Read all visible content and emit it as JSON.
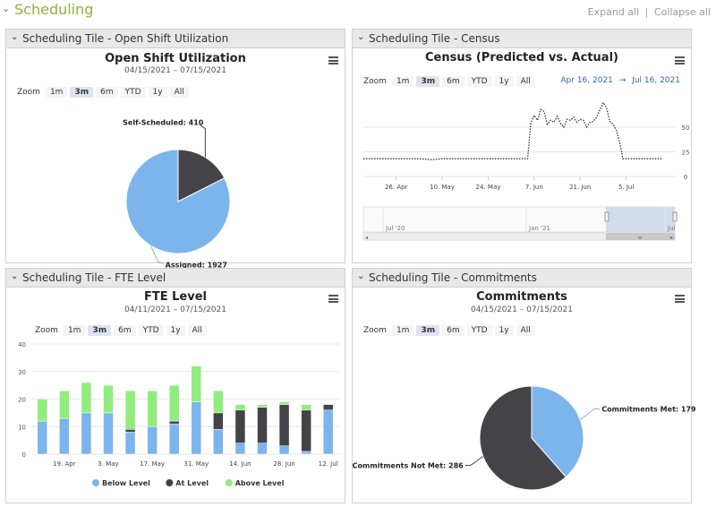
{
  "header": {
    "title": "Scheduling",
    "expand_label": "Expand all",
    "separator": "|",
    "collapse_label": "Collapse all"
  },
  "zoom_label": "Zoom",
  "zoom_options": [
    "1m",
    "3m",
    "6m",
    "YTD",
    "1y",
    "All"
  ],
  "zoom_active": "3m",
  "tiles": {
    "open_shift": {
      "header": "Scheduling Tile - Open Shift Utilization",
      "title": "Open Shift Utilization",
      "subtitle": "04/15/2021 – 07/15/2021"
    },
    "census": {
      "header": "Scheduling Tile - Census",
      "title": "Census (Predicted vs. Actual)",
      "date_from": "Apr 16, 2021",
      "date_arrow": "→",
      "date_to": "Jul 16, 2021",
      "navigator_labels": [
        "Jul '20",
        "Jan '21",
        "Jul"
      ]
    },
    "fte": {
      "header": "Scheduling Tile - FTE Level",
      "title": "FTE Level",
      "subtitle": "04/11/2021 – 07/15/2021"
    },
    "commitments": {
      "header": "Scheduling Tile - Commitments",
      "title": "Commitments",
      "subtitle": "04/15/2021 – 07/15/2021"
    }
  },
  "colors": {
    "blue": "#7cb5ec",
    "dark": "#434348",
    "green": "#90ed7d",
    "accent": "#8db33c",
    "date_link": "#3366aa"
  },
  "chart_data": [
    {
      "id": "open_shift",
      "type": "pie",
      "slices": [
        {
          "label": "Self-Scheduled",
          "value": 410,
          "color": "#434348"
        },
        {
          "label": "Assigned",
          "value": 1927,
          "color": "#7cb5ec"
        }
      ]
    },
    {
      "id": "census",
      "type": "line",
      "x": [
        "2021-04-16",
        "2021-04-20",
        "2021-04-26",
        "2021-05-03",
        "2021-05-07",
        "2021-05-10",
        "2021-05-17",
        "2021-05-24",
        "2021-05-31",
        "2021-06-05",
        "2021-06-06",
        "2021-06-07",
        "2021-06-08",
        "2021-06-09",
        "2021-06-10",
        "2021-06-11",
        "2021-06-12",
        "2021-06-13",
        "2021-06-14",
        "2021-06-15",
        "2021-06-16",
        "2021-06-17",
        "2021-06-18",
        "2021-06-19",
        "2021-06-20",
        "2021-06-21",
        "2021-06-22",
        "2021-06-23",
        "2021-06-24",
        "2021-06-25",
        "2021-06-26",
        "2021-06-27",
        "2021-06-28",
        "2021-06-29",
        "2021-06-30",
        "2021-07-01",
        "2021-07-02",
        "2021-07-03",
        "2021-07-04",
        "2021-07-05",
        "2021-07-08",
        "2021-07-16"
      ],
      "y": [
        18,
        18,
        18,
        18,
        17,
        18,
        18,
        18,
        18,
        18,
        55,
        62,
        57,
        68,
        66,
        53,
        57,
        55,
        61,
        54,
        50,
        58,
        57,
        60,
        55,
        58,
        57,
        50,
        55,
        56,
        60,
        68,
        75,
        70,
        56,
        53,
        47,
        35,
        18,
        18,
        18,
        18
      ],
      "x_ticks": [
        "26. Apr",
        "10. May",
        "24. May",
        "7. Jun",
        "21. Jun",
        "5. Jul"
      ],
      "y_ticks": [
        0,
        25,
        50
      ],
      "ylim": [
        0,
        80
      ]
    },
    {
      "id": "fte",
      "type": "bar",
      "stacked": true,
      "categories": [
        "Apr 12",
        "Apr 19",
        "Apr 26",
        "May 3",
        "May 10",
        "May 17",
        "May 24",
        "May 31",
        "Jun 7",
        "Jun 14",
        "Jun 21",
        "Jun 28",
        "Jul 5",
        "Jul 12"
      ],
      "series": [
        {
          "name": "Below Level",
          "color": "#7cb5ec",
          "values": [
            12,
            13,
            15,
            15,
            8,
            10,
            11,
            19,
            9,
            4,
            4,
            3,
            1,
            16
          ]
        },
        {
          "name": "At Level",
          "color": "#434348",
          "values": [
            0,
            0,
            0,
            0,
            1,
            0,
            1,
            0,
            6,
            12,
            13,
            15,
            15,
            2
          ]
        },
        {
          "name": "Above Level",
          "color": "#90ed7d",
          "values": [
            8,
            10,
            11,
            10,
            14,
            13,
            13,
            13,
            8,
            2,
            1,
            1,
            2,
            0
          ]
        }
      ],
      "x_ticks": [
        "19. Apr",
        "3. May",
        "17. May",
        "31. May",
        "14. Jun",
        "28. Jun",
        "12. Jul"
      ],
      "y_ticks": [
        0,
        10,
        20,
        30,
        40
      ],
      "ylim": [
        0,
        40
      ]
    },
    {
      "id": "commitments",
      "type": "pie",
      "slices": [
        {
          "label": "Commitments Met",
          "value": 179,
          "color": "#7cb5ec"
        },
        {
          "label": "Commitments Not Met",
          "value": 286,
          "color": "#434348"
        }
      ]
    }
  ]
}
